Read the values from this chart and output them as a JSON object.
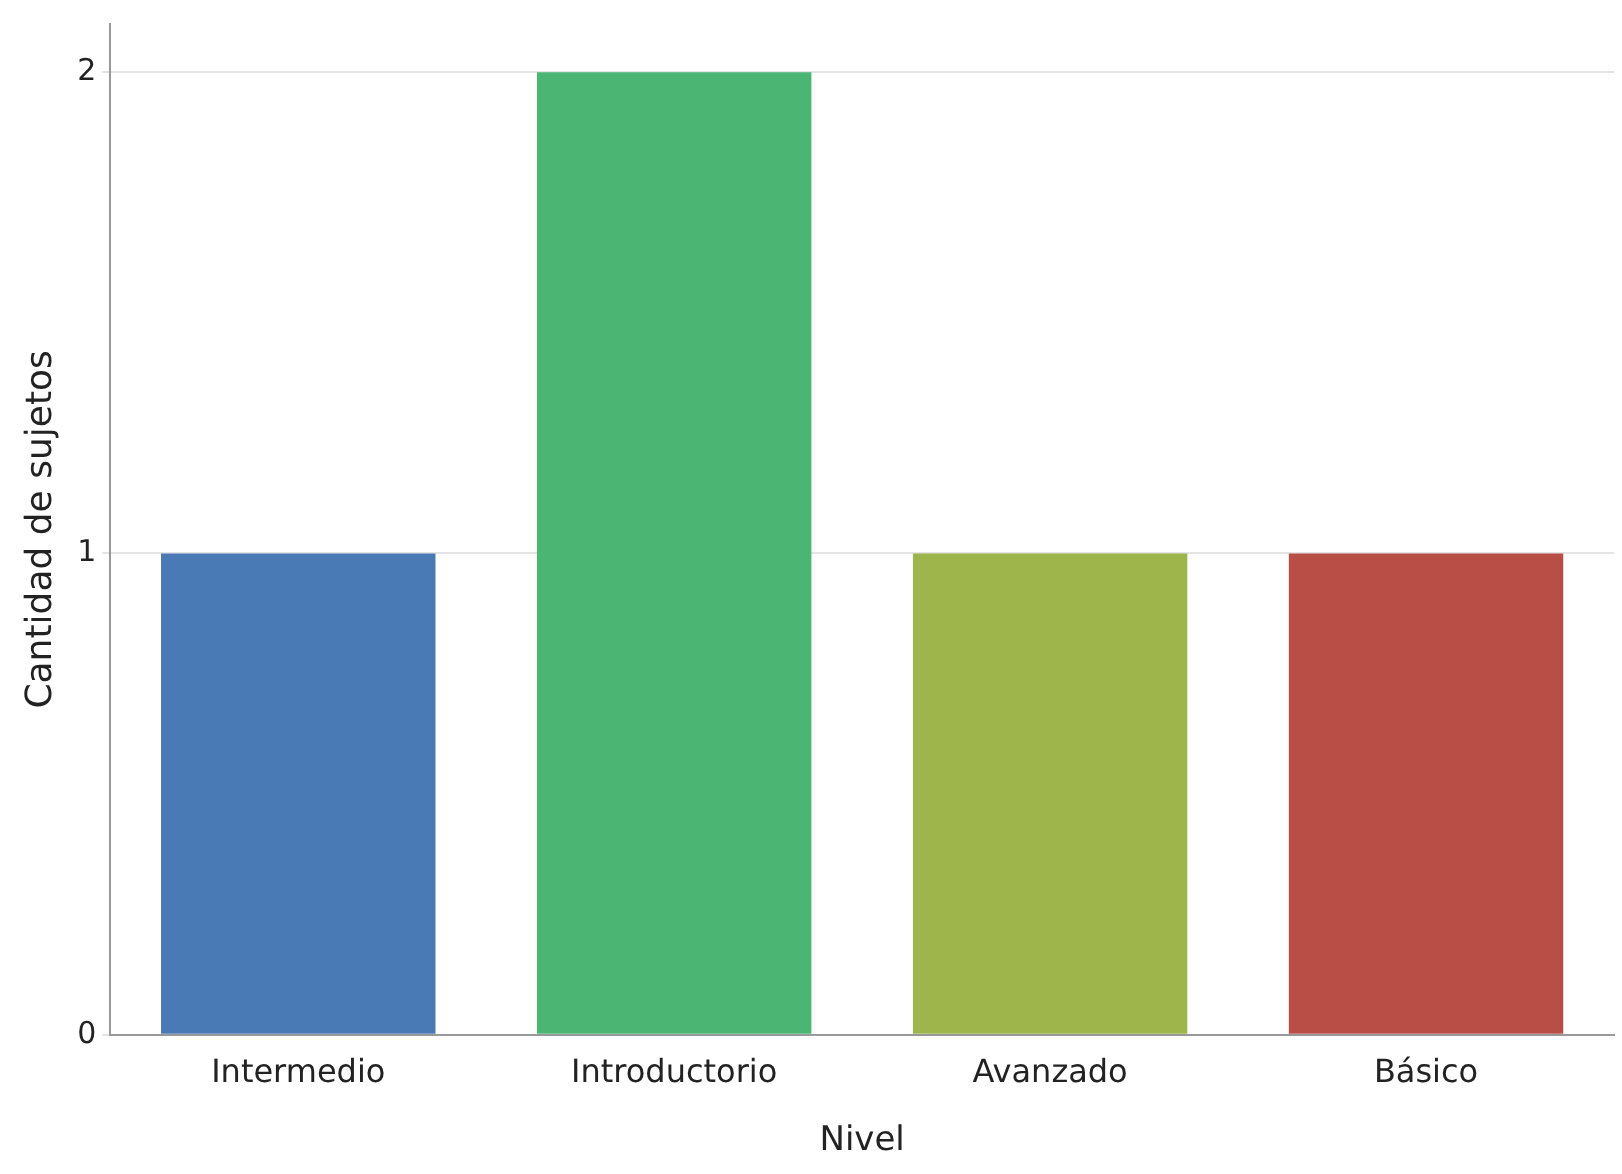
{
  "chart_data": {
    "type": "bar",
    "xlabel": "Nivel",
    "ylabel": "Cantidad de sujetos",
    "categories": [
      "Intermedio",
      "Introductorio",
      "Avanzado",
      "Básico"
    ],
    "values": [
      1,
      2,
      1,
      1
    ],
    "colors": [
      "#4a7ab5",
      "#4bb573",
      "#9db54b",
      "#b94e47"
    ],
    "ylim": [
      0,
      2.1
    ],
    "yticks": [
      0,
      1,
      2
    ],
    "grid": "y",
    "legend": false
  }
}
